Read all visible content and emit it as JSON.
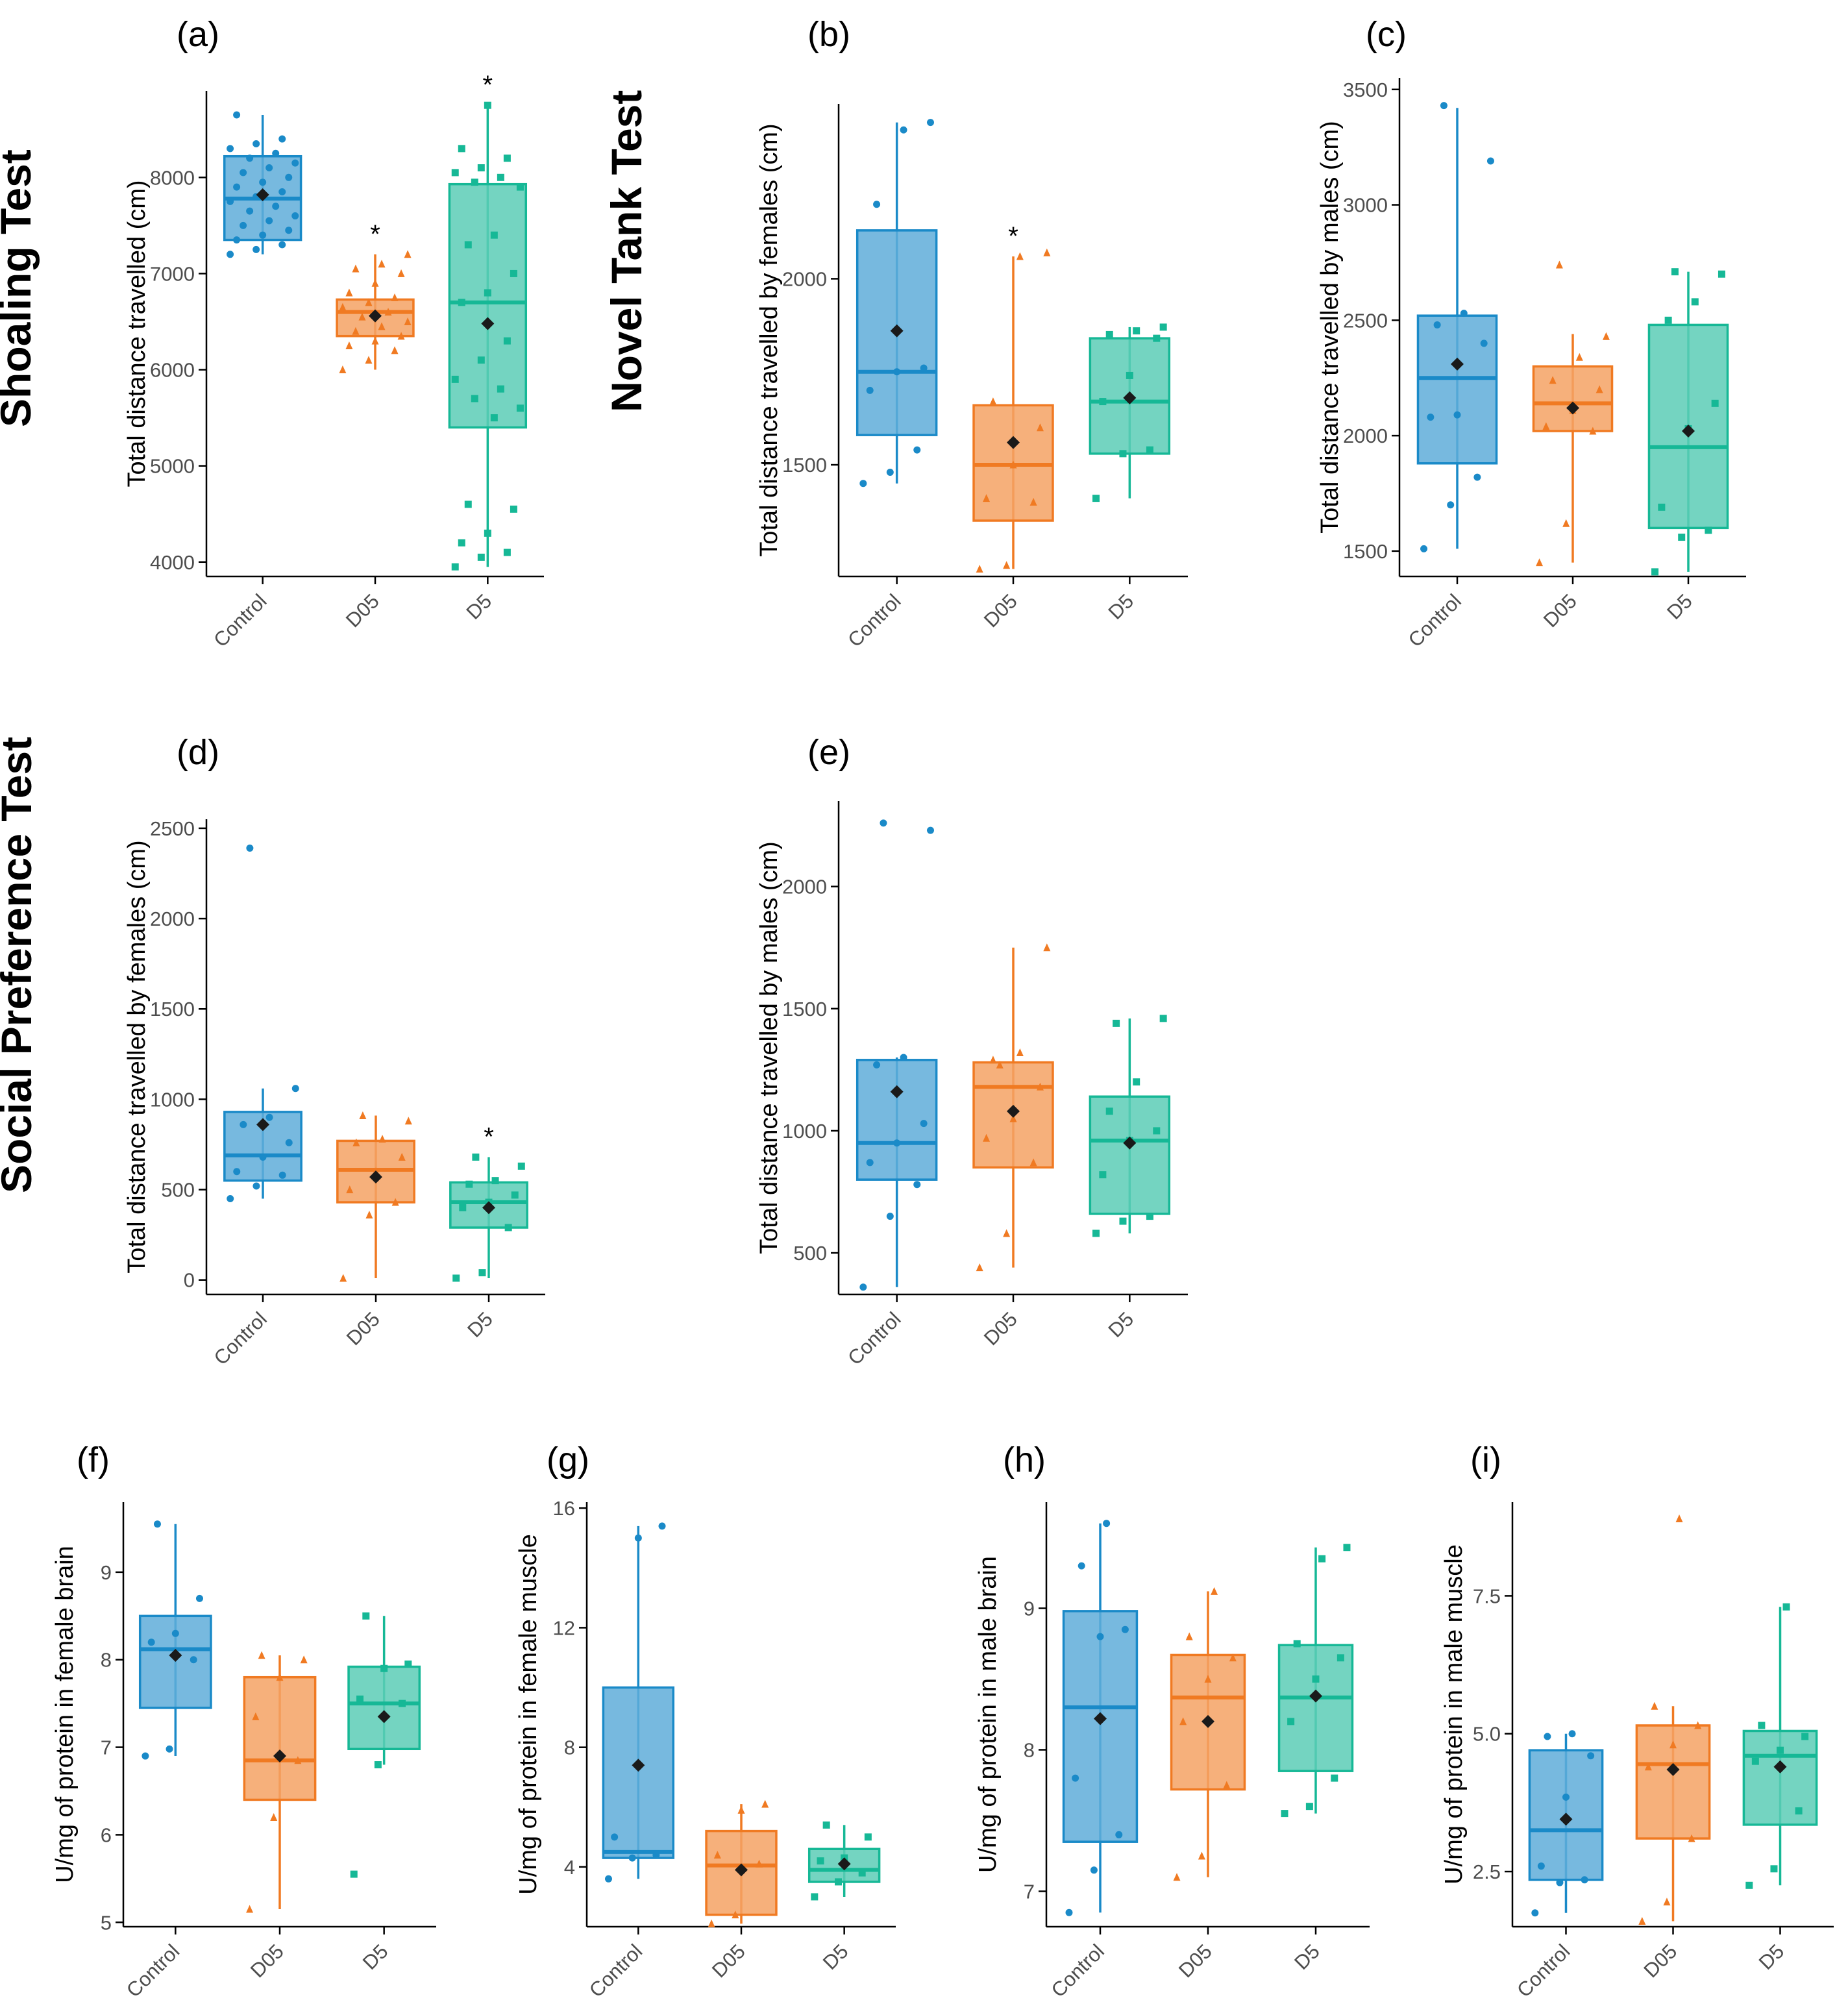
{
  "figure": {
    "row_titles": [
      "Shoaling Test",
      "Novel Tank Test",
      "Social Preference Test"
    ],
    "colors": {
      "Control": "#1a8ac8",
      "D05": "#f07a22",
      "D5": "#16b896",
      "mean_marker": "#1a1a1a",
      "axis": "#000000",
      "tick_text": "#4d4d4d"
    }
  },
  "chart_data": [
    {
      "panel": "(a)",
      "type": "box",
      "ylabel": "Total distance travelled (cm)",
      "categories": [
        "Control",
        "D05",
        "D5"
      ],
      "ylim": [
        3850,
        8900
      ],
      "yticks": [
        4000,
        5000,
        6000,
        7000,
        8000
      ],
      "boxes": [
        {
          "q1": 7350,
          "median": 7780,
          "q3": 8220,
          "whislo": 7200,
          "whishi": 8650,
          "mean": 7820,
          "sig": false
        },
        {
          "q1": 6350,
          "median": 6600,
          "q3": 6730,
          "whislo": 6000,
          "whishi": 7200,
          "mean": 6560,
          "sig": true
        },
        {
          "q1": 5400,
          "median": 6700,
          "q3": 7930,
          "whislo": 3950,
          "whishi": 8750,
          "mean": 6480,
          "sig": true
        }
      ],
      "points": [
        [
          7200,
          7250,
          7300,
          7350,
          7400,
          7450,
          7500,
          7550,
          7600,
          7650,
          7700,
          7750,
          7800,
          7850,
          7900,
          7950,
          8000,
          8050,
          8100,
          8150,
          8200,
          8250,
          8300,
          8350,
          8400,
          8650
        ],
        [
          6000,
          6100,
          6200,
          6250,
          6300,
          6350,
          6400,
          6450,
          6500,
          6550,
          6600,
          6650,
          6700,
          6750,
          6800,
          6900,
          7000,
          7050,
          7100,
          7200
        ],
        [
          3950,
          4050,
          4100,
          4200,
          4300,
          4550,
          4600,
          5500,
          5600,
          5700,
          5800,
          5900,
          6100,
          6300,
          6700,
          6800,
          7000,
          7300,
          7400,
          7900,
          7950,
          8000,
          8050,
          8100,
          8200,
          8300,
          8750
        ]
      ]
    },
    {
      "panel": "(b)",
      "type": "box",
      "ylabel": "Total distance travelled by females (cm)",
      "categories": [
        "Control",
        "D05",
        "D5"
      ],
      "ylim": [
        1200,
        2470
      ],
      "yticks": [
        1500,
        2000
      ],
      "boxes": [
        {
          "q1": 1580,
          "median": 1750,
          "q3": 2130,
          "whislo": 1450,
          "whishi": 2420,
          "mean": 1860,
          "sig": false
        },
        {
          "q1": 1350,
          "median": 1500,
          "q3": 1660,
          "whislo": 1220,
          "whishi": 2060,
          "mean": 1560,
          "sig": true
        },
        {
          "q1": 1530,
          "median": 1670,
          "q3": 1840,
          "whislo": 1410,
          "whishi": 1870,
          "mean": 1680,
          "sig": false
        }
      ],
      "points": [
        [
          1450,
          1480,
          1540,
          1700,
          1750,
          1760,
          2200,
          2400,
          2420
        ],
        [
          1220,
          1230,
          1400,
          1410,
          1500,
          1600,
          1670,
          2060,
          2070
        ],
        [
          1410,
          1530,
          1540,
          1670,
          1740,
          1840,
          1850,
          1860,
          1870
        ]
      ]
    },
    {
      "panel": "(c)",
      "type": "box",
      "ylabel": "Total distance travelled by males (cm)",
      "categories": [
        "Control",
        "D05",
        "D5"
      ],
      "ylim": [
        1390,
        3550
      ],
      "yticks": [
        1500,
        2000,
        2500,
        3000,
        3500
      ],
      "boxes": [
        {
          "q1": 1880,
          "median": 2250,
          "q3": 2520,
          "whislo": 1510,
          "whishi": 3420,
          "mean": 2310,
          "sig": false
        },
        {
          "q1": 2020,
          "median": 2140,
          "q3": 2300,
          "whislo": 1450,
          "whishi": 2440,
          "mean": 2120,
          "sig": false
        },
        {
          "q1": 1600,
          "median": 1950,
          "q3": 2480,
          "whislo": 1410,
          "whishi": 2710,
          "mean": 2020,
          "sig": false
        }
      ],
      "points": [
        [
          1510,
          1700,
          1820,
          2080,
          2090,
          2400,
          2480,
          2530,
          3190,
          3430
        ],
        [
          1450,
          1620,
          2020,
          2040,
          2110,
          2200,
          2240,
          2340,
          2430,
          2740
        ],
        [
          1410,
          1560,
          1590,
          1690,
          2030,
          2140,
          2500,
          2580,
          2700,
          2710
        ]
      ]
    },
    {
      "panel": "(d)",
      "type": "box",
      "ylabel": "Total distance travelled by females (cm)",
      "categories": [
        "Control",
        "D05",
        "D5"
      ],
      "ylim": [
        -80,
        2550
      ],
      "yticks": [
        0,
        500,
        1000,
        1500,
        2000,
        2500
      ],
      "boxes": [
        {
          "q1": 550,
          "median": 690,
          "q3": 930,
          "whislo": 450,
          "whishi": 1060,
          "mean": 860,
          "sig": false
        },
        {
          "q1": 430,
          "median": 610,
          "q3": 770,
          "whislo": 10,
          "whishi": 910,
          "mean": 570,
          "sig": false
        },
        {
          "q1": 290,
          "median": 430,
          "q3": 540,
          "whislo": 10,
          "whishi": 680,
          "mean": 400,
          "sig": true
        }
      ],
      "points": [
        [
          450,
          520,
          580,
          600,
          680,
          760,
          860,
          900,
          1060,
          2390
        ],
        [
          10,
          360,
          430,
          500,
          600,
          680,
          760,
          780,
          880,
          910
        ],
        [
          10,
          40,
          290,
          400,
          430,
          470,
          530,
          550,
          630,
          680
        ]
      ]
    },
    {
      "panel": "(e)",
      "type": "box",
      "ylabel": "Total distance travelled by males (cm)",
      "categories": [
        "Control",
        "D05",
        "D5"
      ],
      "ylim": [
        330,
        2350
      ],
      "yticks": [
        500,
        1000,
        1500,
        2000
      ],
      "boxes": [
        {
          "q1": 800,
          "median": 950,
          "q3": 1290,
          "whislo": 360,
          "whishi": 1300,
          "mean": 1160,
          "sig": false
        },
        {
          "q1": 850,
          "median": 1180,
          "q3": 1280,
          "whislo": 440,
          "whishi": 1750,
          "mean": 1080,
          "sig": false
        },
        {
          "q1": 660,
          "median": 960,
          "q3": 1140,
          "whislo": 580,
          "whishi": 1460,
          "mean": 950,
          "sig": false
        }
      ],
      "points": [
        [
          360,
          650,
          780,
          870,
          950,
          1030,
          1270,
          1300,
          2230,
          2260
        ],
        [
          440,
          580,
          870,
          970,
          1050,
          1180,
          1290,
          1320,
          1750,
          1270
        ],
        [
          580,
          630,
          650,
          820,
          960,
          1000,
          1080,
          1200,
          1460,
          1440
        ]
      ]
    },
    {
      "panel": "(f)",
      "type": "box",
      "ylabel": "U/mg of protein in female brain",
      "categories": [
        "Control",
        "D05",
        "D5"
      ],
      "ylim": [
        4.95,
        9.8
      ],
      "yticks": [
        5,
        6,
        7,
        8,
        9
      ],
      "boxes": [
        {
          "q1": 7.45,
          "median": 8.12,
          "q3": 8.5,
          "whislo": 6.9,
          "whishi": 9.55,
          "mean": 8.05,
          "sig": false
        },
        {
          "q1": 6.4,
          "median": 6.85,
          "q3": 7.8,
          "whislo": 5.15,
          "whishi": 8.05,
          "mean": 6.9,
          "sig": false
        },
        {
          "q1": 6.98,
          "median": 7.5,
          "q3": 7.92,
          "whislo": 6.8,
          "whishi": 8.5,
          "mean": 7.35,
          "sig": false
        }
      ],
      "points": [
        [
          6.9,
          6.98,
          8.0,
          8.2,
          8.3,
          8.7,
          9.55
        ],
        [
          5.15,
          6.2,
          6.85,
          7.35,
          7.8,
          8.0,
          8.05
        ],
        [
          5.55,
          6.8,
          7.5,
          7.55,
          7.9,
          7.95,
          8.5
        ]
      ]
    },
    {
      "panel": "(g)",
      "type": "box",
      "ylabel": "U/mg of protein in female  muscle",
      "categories": [
        "Control",
        "D05",
        "D5"
      ],
      "ylim": [
        2.0,
        16.2
      ],
      "yticks": [
        4,
        8,
        12,
        16
      ],
      "boxes": [
        {
          "q1": 4.3,
          "median": 4.5,
          "q3": 10.0,
          "whislo": 3.6,
          "whishi": 15.4,
          "mean": 7.4,
          "sig": false
        },
        {
          "q1": 2.4,
          "median": 4.05,
          "q3": 5.2,
          "whislo": 2.1,
          "whishi": 6.1,
          "mean": 3.9,
          "sig": false
        },
        {
          "q1": 3.5,
          "median": 3.9,
          "q3": 4.6,
          "whislo": 3.0,
          "whishi": 5.4,
          "mean": 4.1,
          "sig": false
        }
      ],
      "points": [
        [
          3.6,
          4.3,
          4.4,
          5.0,
          15.0,
          15.4
        ],
        [
          2.1,
          2.4,
          4.1,
          4.4,
          5.9,
          6.1
        ],
        [
          3.0,
          3.5,
          3.8,
          4.2,
          4.3,
          5.0,
          5.4
        ]
      ]
    },
    {
      "panel": "(h)",
      "type": "box",
      "ylabel": "U/mg of protein in male brain",
      "categories": [
        "Control",
        "D05",
        "D5"
      ],
      "ylim": [
        6.75,
        9.75
      ],
      "yticks": [
        7,
        8,
        9
      ],
      "boxes": [
        {
          "q1": 7.35,
          "median": 8.3,
          "q3": 8.98,
          "whislo": 6.85,
          "whishi": 9.6,
          "mean": 8.22,
          "sig": false
        },
        {
          "q1": 7.72,
          "median": 8.37,
          "q3": 8.67,
          "whislo": 7.1,
          "whishi": 9.12,
          "mean": 8.2,
          "sig": false
        },
        {
          "q1": 7.85,
          "median": 8.37,
          "q3": 8.74,
          "whislo": 7.55,
          "whishi": 9.43,
          "mean": 8.38,
          "sig": false
        }
      ],
      "points": [
        [
          6.85,
          7.15,
          7.4,
          7.8,
          8.8,
          8.85,
          9.3,
          9.6
        ],
        [
          7.1,
          7.25,
          7.75,
          8.2,
          8.5,
          8.65,
          8.8,
          9.12
        ],
        [
          7.55,
          7.6,
          7.8,
          8.2,
          8.5,
          8.65,
          8.75,
          9.35,
          9.43
        ]
      ]
    },
    {
      "panel": "(i)",
      "type": "box",
      "ylabel": "U/mg of protein in male  muscle",
      "categories": [
        "Control",
        "D05",
        "D5"
      ],
      "ylim": [
        1.5,
        9.2
      ],
      "yticks": [
        2.5,
        5.0,
        7.5
      ],
      "ytick_labels": [
        "2.5",
        "5.0",
        "7.5"
      ],
      "boxes": [
        {
          "q1": 2.35,
          "median": 3.25,
          "q3": 4.7,
          "whislo": 1.75,
          "whishi": 5.0,
          "mean": 3.45,
          "sig": false
        },
        {
          "q1": 3.1,
          "median": 4.45,
          "q3": 5.15,
          "whislo": 1.6,
          "whishi": 5.5,
          "mean": 4.35,
          "sig": false
        },
        {
          "q1": 3.35,
          "median": 4.6,
          "q3": 5.05,
          "whislo": 2.25,
          "whishi": 7.3,
          "mean": 4.4,
          "sig": false
        }
      ],
      "points": [
        [
          1.75,
          2.3,
          2.35,
          2.6,
          3.85,
          4.6,
          4.95,
          5.0
        ],
        [
          1.6,
          1.95,
          3.1,
          4.4,
          4.8,
          5.15,
          5.5,
          8.9
        ],
        [
          2.25,
          2.55,
          3.6,
          4.5,
          4.7,
          4.95,
          5.15,
          7.3
        ]
      ]
    }
  ]
}
